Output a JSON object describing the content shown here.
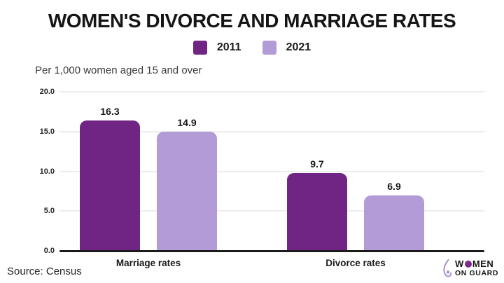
{
  "chart_data": {
    "type": "bar",
    "title": "WOMEN'S DIVORCE AND MARRIAGE RATES",
    "subtitle": "Per 1,000 women aged 15 and over",
    "categories": [
      "Marriage rates",
      "Divorce rates"
    ],
    "series": [
      {
        "name": "2011",
        "values": [
          16.3,
          9.7
        ],
        "color": "#702585"
      },
      {
        "name": "2021",
        "values": [
          14.9,
          6.9
        ],
        "color": "#b39bd8"
      }
    ],
    "ylim": [
      0,
      20
    ],
    "y_ticks": [
      "20.0",
      "15.0",
      "10.0",
      "5.0",
      "0.0"
    ],
    "grid": "horizontal",
    "legend_position": "top",
    "source": "Source: Census"
  },
  "colors": {
    "series_2011": "#702585",
    "series_2021": "#b39bd8",
    "gridline": "#efecec",
    "axis_line": "#1a1a1a",
    "background": "#ffffff",
    "brand_purple": "#7d2b8b",
    "brand_icon_purple": "#a98fd0"
  },
  "brand": {
    "word_pre": "W",
    "word_post": "MEN",
    "line2": "ON GUARD"
  }
}
